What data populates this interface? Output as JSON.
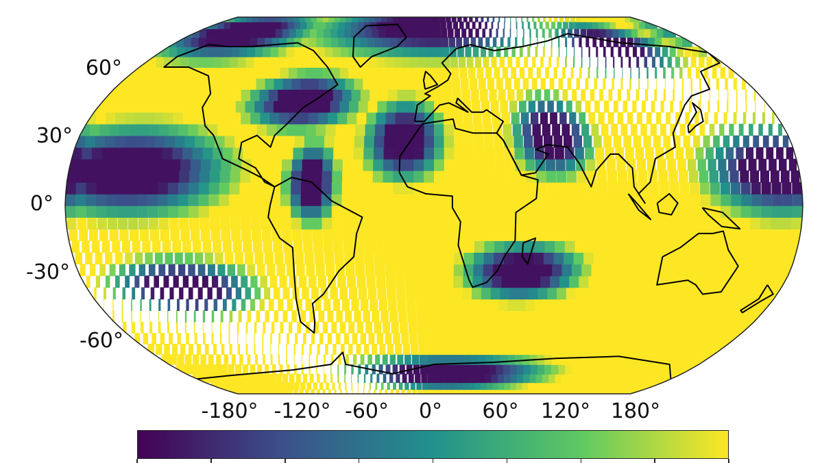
{
  "map": {
    "projection": "Robinson",
    "variable_colormap": "viridis",
    "colormap_stops": [
      "#440154",
      "#3b528b",
      "#21918c",
      "#5ec962",
      "#fde725"
    ],
    "land_outline_color": "#000000",
    "lat_labels": [
      "60°",
      "30°",
      "0°",
      "-30°",
      "-60°"
    ],
    "lon_labels": [
      "-180°",
      "-120°",
      "-60°",
      "0°",
      "60°",
      "120°",
      "180°"
    ]
  },
  "colorbar": {
    "orientation": "horizontal",
    "tick_count": 9
  }
}
